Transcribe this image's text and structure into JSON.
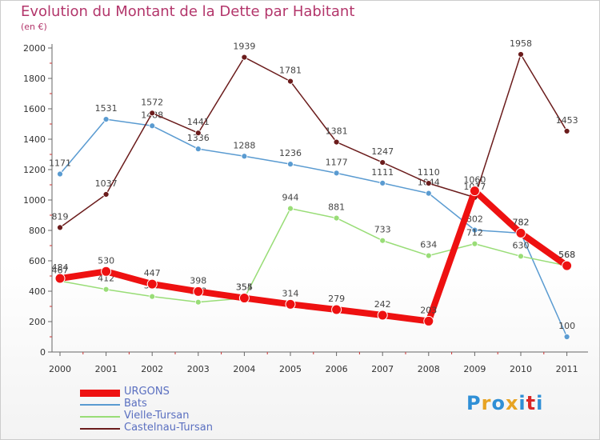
{
  "title": "Evolution du Montant de la Dette par Habitant",
  "unit": "(en €)",
  "logo": {
    "text": [
      "P",
      "r",
      "o",
      "x",
      "i",
      "t",
      "i"
    ],
    "colors": [
      "#2f8fd6",
      "#e7a323",
      "#2f8fd6",
      "#e7a323",
      "#2f8fd6",
      "#d92727",
      "#2f8fd6"
    ]
  },
  "chart_data": {
    "type": "line",
    "categories": [
      "2000",
      "2001",
      "2002",
      "2003",
      "2004",
      "2005",
      "2006",
      "2007",
      "2008",
      "2009",
      "2010",
      "2011"
    ],
    "ylim": [
      0,
      2000
    ],
    "yticks": [
      0,
      200,
      400,
      600,
      800,
      1000,
      1200,
      1400,
      1600,
      1800,
      2000
    ],
    "grid": false,
    "legend": "bottom-left",
    "series": [
      {
        "name": "URGONS",
        "color": "#ee1111",
        "values": [
          484,
          530,
          447,
          398,
          355,
          314,
          279,
          242,
          203,
          1060,
          782,
          568
        ]
      },
      {
        "name": "Bats",
        "color": "#5a9bd1",
        "values": [
          1171,
          1531,
          1488,
          1336,
          1288,
          1236,
          1177,
          1111,
          1044,
          802,
          782,
          100
        ]
      },
      {
        "name": "Vielle-Tursan",
        "color": "#99dd77",
        "values": [
          467,
          412,
          365,
          328,
          354,
          944,
          881,
          733,
          634,
          712,
          630,
          568
        ]
      },
      {
        "name": "Castelnau-Tursan",
        "color": "#6b1c1c",
        "values": [
          819,
          1037,
          1572,
          1441,
          1939,
          1781,
          1381,
          1247,
          1110,
          1017,
          1958,
          1453
        ]
      }
    ]
  }
}
